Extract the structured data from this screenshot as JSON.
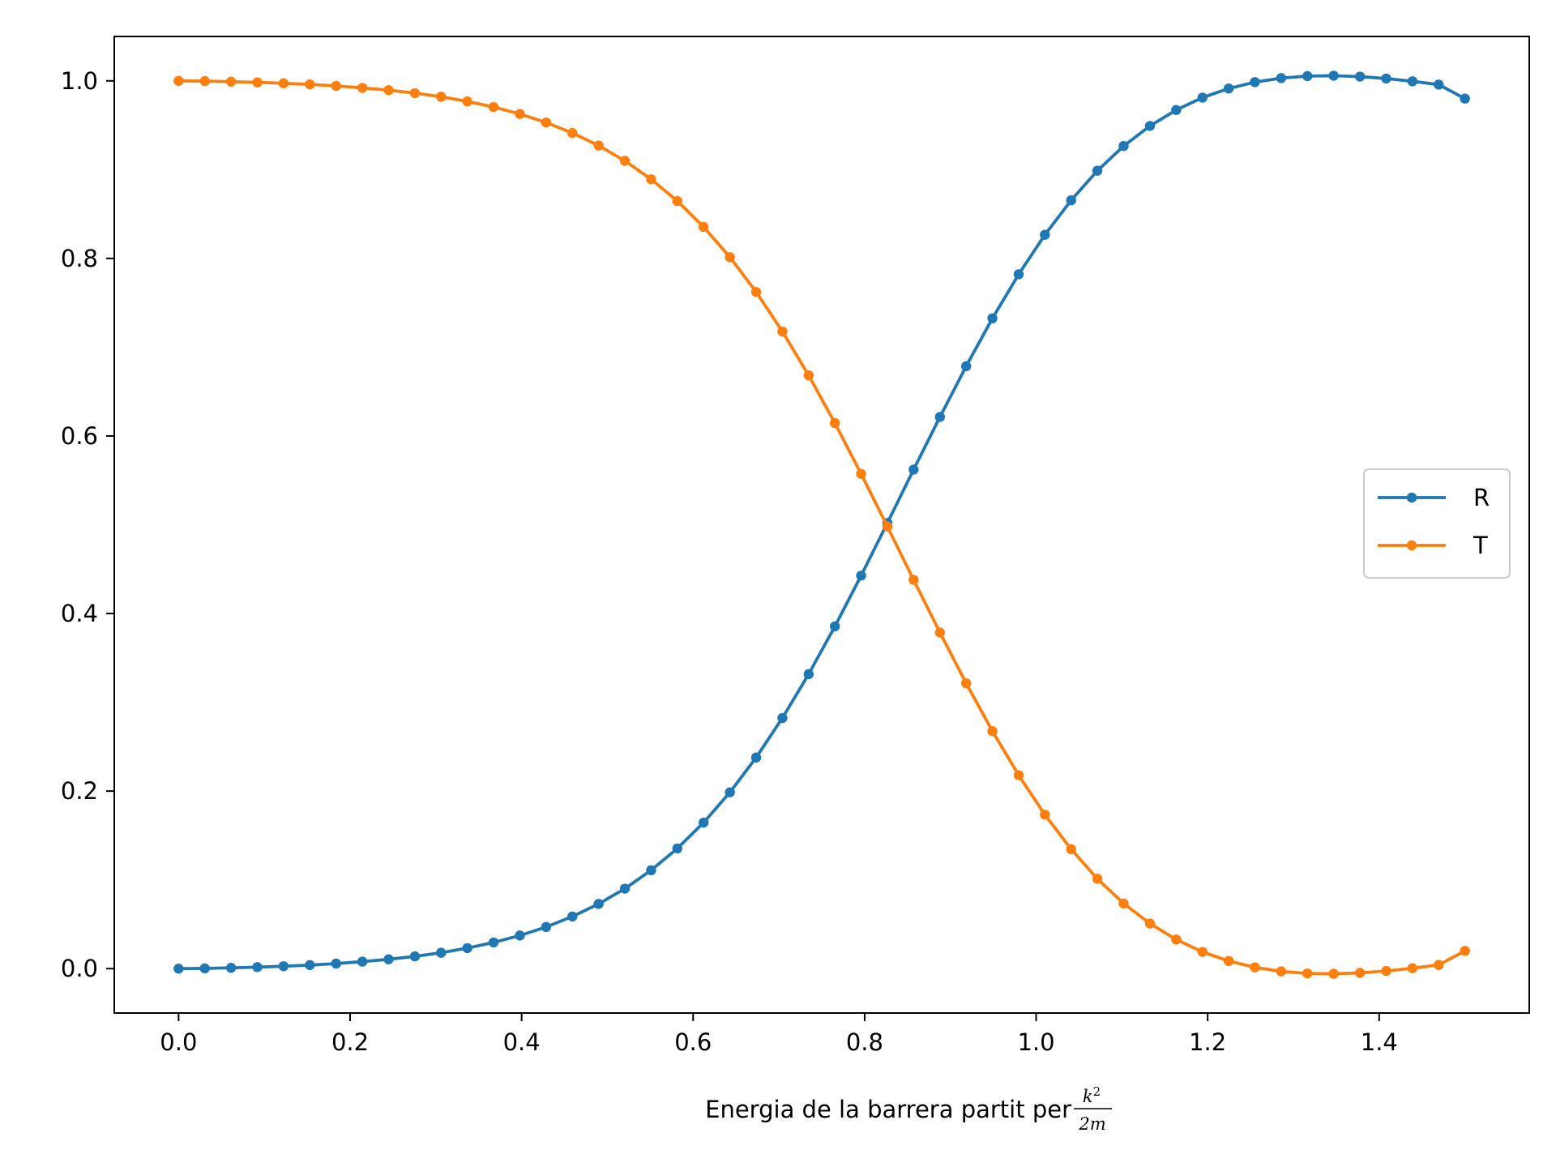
{
  "chart_data": {
    "type": "line",
    "title": "",
    "xlabel": "Energia de la barrera partit per",
    "xlabel_math": {
      "numerator": "k",
      "exponent": "2",
      "denominator": "2m"
    },
    "ylabel": "",
    "xlim": [
      -0.075,
      1.575
    ],
    "ylim": [
      -0.05,
      1.05
    ],
    "xticks": [
      0.0,
      0.2,
      0.4,
      0.6,
      0.8,
      1.0,
      1.2,
      1.4
    ],
    "xtick_labels": [
      "0.0",
      "0.2",
      "0.4",
      "0.6",
      "0.8",
      "1.0",
      "1.2",
      "1.4"
    ],
    "yticks": [
      0.0,
      0.2,
      0.4,
      0.6,
      0.8,
      1.0
    ],
    "ytick_labels": [
      "0.0",
      "0.2",
      "0.4",
      "0.6",
      "0.8",
      "1.0"
    ],
    "grid": false,
    "legend": "center-right",
    "x": [
      0.0,
      0.0306,
      0.0612,
      0.0918,
      0.1224,
      0.1531,
      0.1837,
      0.2143,
      0.2449,
      0.2755,
      0.3061,
      0.3367,
      0.3673,
      0.398,
      0.4286,
      0.4592,
      0.4898,
      0.5204,
      0.551,
      0.5816,
      0.6122,
      0.6429,
      0.6735,
      0.7041,
      0.7347,
      0.7653,
      0.7959,
      0.8265,
      0.8571,
      0.8878,
      0.9184,
      0.949,
      0.9796,
      1.0102,
      1.0408,
      1.0714,
      1.102,
      1.1327,
      1.1633,
      1.1939,
      1.2245,
      1.2551,
      1.2857,
      1.3163,
      1.3469,
      1.3776,
      1.4082,
      1.4388,
      1.4694,
      1.5
    ],
    "series": [
      {
        "name": "R",
        "color": "#1f77b4",
        "values": [
          0.0,
          0.0003,
          0.0009,
          0.0017,
          0.0027,
          0.004,
          0.0057,
          0.0079,
          0.0105,
          0.0138,
          0.0179,
          0.0231,
          0.0295,
          0.0373,
          0.0469,
          0.0587,
          0.0729,
          0.0901,
          0.1108,
          0.1354,
          0.1645,
          0.1986,
          0.2378,
          0.2823,
          0.3317,
          0.3855,
          0.4427,
          0.502,
          0.5621,
          0.6214,
          0.6786,
          0.7325,
          0.7821,
          0.8266,
          0.8655,
          0.8988,
          0.9266,
          0.9492,
          0.9672,
          0.9811,
          0.9914,
          0.9986,
          1.0031,
          1.0054,
          1.0058,
          1.0048,
          1.0026,
          0.9995,
          0.9958,
          0.98
        ]
      },
      {
        "name": "T",
        "color": "#ff7f0e",
        "values": [
          1.0,
          0.9997,
          0.9991,
          0.9983,
          0.9973,
          0.996,
          0.9943,
          0.9921,
          0.9895,
          0.9862,
          0.9821,
          0.9769,
          0.9705,
          0.9627,
          0.9531,
          0.9413,
          0.9271,
          0.9099,
          0.8892,
          0.8646,
          0.8355,
          0.8014,
          0.7622,
          0.7177,
          0.6683,
          0.6145,
          0.5573,
          0.498,
          0.4379,
          0.3786,
          0.3214,
          0.2675,
          0.2179,
          0.1734,
          0.1345,
          0.1012,
          0.0734,
          0.0508,
          0.0328,
          0.0189,
          0.0086,
          0.0014,
          -0.0031,
          -0.0054,
          -0.0058,
          -0.0048,
          -0.0026,
          0.0005,
          0.0042,
          0.02
        ]
      }
    ]
  }
}
